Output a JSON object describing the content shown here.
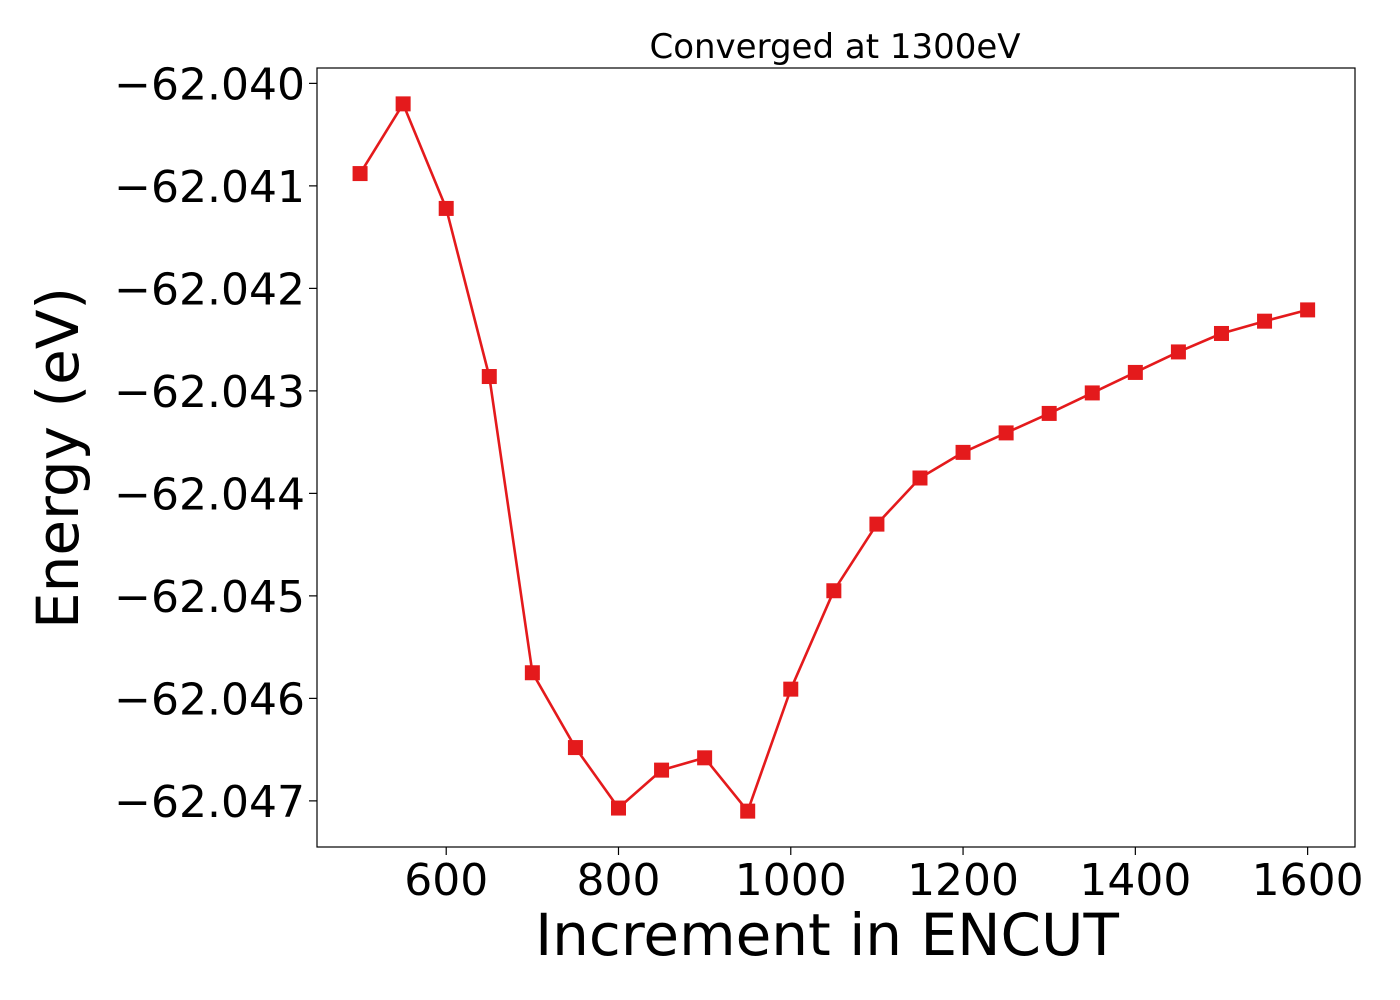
{
  "chart_data": {
    "type": "line",
    "title": "Converged at 1300eV",
    "xlabel": "Increment in ENCUT",
    "ylabel": "Energy (eV)",
    "xlim": [
      450,
      1655
    ],
    "ylim": [
      -62.04745,
      -62.03985
    ],
    "x_ticks": [
      600,
      800,
      1000,
      1200,
      1400,
      1600
    ],
    "x_tick_labels": [
      "600",
      "800",
      "1000",
      "1200",
      "1400",
      "1600"
    ],
    "y_ticks": [
      -62.04,
      -62.041,
      -62.042,
      -62.043,
      -62.044,
      -62.045,
      -62.046,
      -62.047
    ],
    "y_tick_labels": [
      "−62.040",
      "−62.041",
      "−62.042",
      "−62.043",
      "−62.044",
      "−62.045",
      "−62.046",
      "−62.047"
    ],
    "grid": false,
    "series": [
      {
        "color": "#e41a1c",
        "marker": "square",
        "x": [
          500,
          550,
          600,
          650,
          700,
          750,
          800,
          850,
          900,
          950,
          1000,
          1050,
          1100,
          1150,
          1200,
          1250,
          1300,
          1350,
          1400,
          1450,
          1500,
          1550,
          1600
        ],
        "y": [
          -62.04088,
          -62.0402,
          -62.04122,
          -62.04286,
          -62.04575,
          -62.04648,
          -62.04707,
          -62.0467,
          -62.04658,
          -62.0471,
          -62.04591,
          -62.04495,
          -62.0443,
          -62.04385,
          -62.0436,
          -62.04341,
          -62.04322,
          -62.04302,
          -62.04282,
          -62.04262,
          -62.04244,
          -62.04232,
          -62.04221
        ]
      }
    ]
  }
}
